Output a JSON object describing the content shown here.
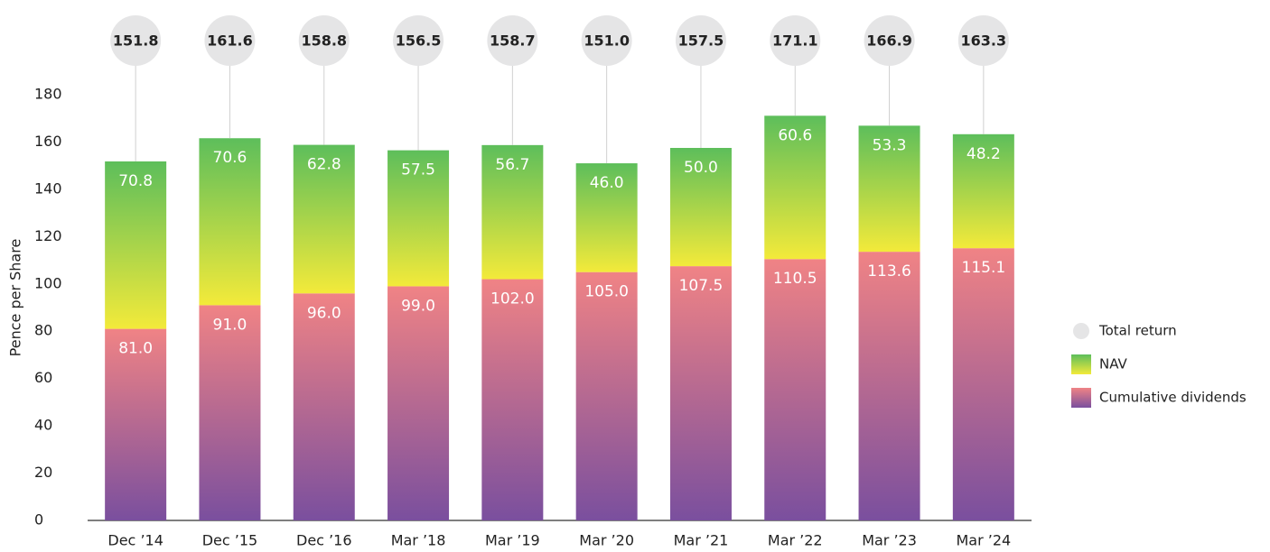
{
  "chart_data": {
    "type": "bar",
    "stacked": true,
    "y_label": "Pence per Share",
    "categories": [
      "Dec ’14",
      "Dec ’15",
      "Dec ’16",
      "Mar ’18",
      "Mar ’19",
      "Mar ’20",
      "Mar ’21",
      "Mar ’22",
      "Mar ’23",
      "Mar ’24"
    ],
    "series": [
      {
        "name": "Cumulative dividends",
        "kind": "bar",
        "gradient": [
          "#f08385",
          "#7a4f9e"
        ],
        "values": [
          81,
          91,
          96,
          99,
          102,
          105,
          107.5,
          110.5,
          113.6,
          115.1
        ],
        "value_labels": [
          "81.0",
          "91.0",
          "96.0",
          "99.0",
          "102.0",
          "105.0",
          "107.5",
          "110.5",
          "113.6",
          "115.1"
        ]
      },
      {
        "name": "NAV",
        "kind": "bar",
        "gradient": [
          "#5dbe5b",
          "#f3ea3a"
        ],
        "values": [
          70.8,
          70.6,
          62.8,
          57.5,
          56.7,
          46,
          50,
          60.6,
          53.3,
          48.2
        ],
        "value_labels": [
          "70.8",
          "70.6",
          "62.8",
          "57.5",
          "56.7",
          "46.0",
          "50.0",
          "60.6",
          "53.3",
          "48.2"
        ]
      },
      {
        "name": "Total return",
        "kind": "bubble",
        "color": "#e5e5e6",
        "values": [
          151.8,
          161.6,
          158.8,
          156.5,
          158.7,
          151,
          157.5,
          171.1,
          166.9,
          163.3
        ],
        "value_labels": [
          "151.8",
          "161.6",
          "158.8",
          "156.5",
          "158.7",
          "151.0",
          "157.5",
          "171.1",
          "166.9",
          "163.3"
        ]
      }
    ],
    "ylim": [
      0,
      180
    ],
    "yticks": [
      0,
      20,
      40,
      60,
      80,
      100,
      120,
      140,
      160,
      180
    ],
    "grid": false,
    "legend": "right"
  }
}
